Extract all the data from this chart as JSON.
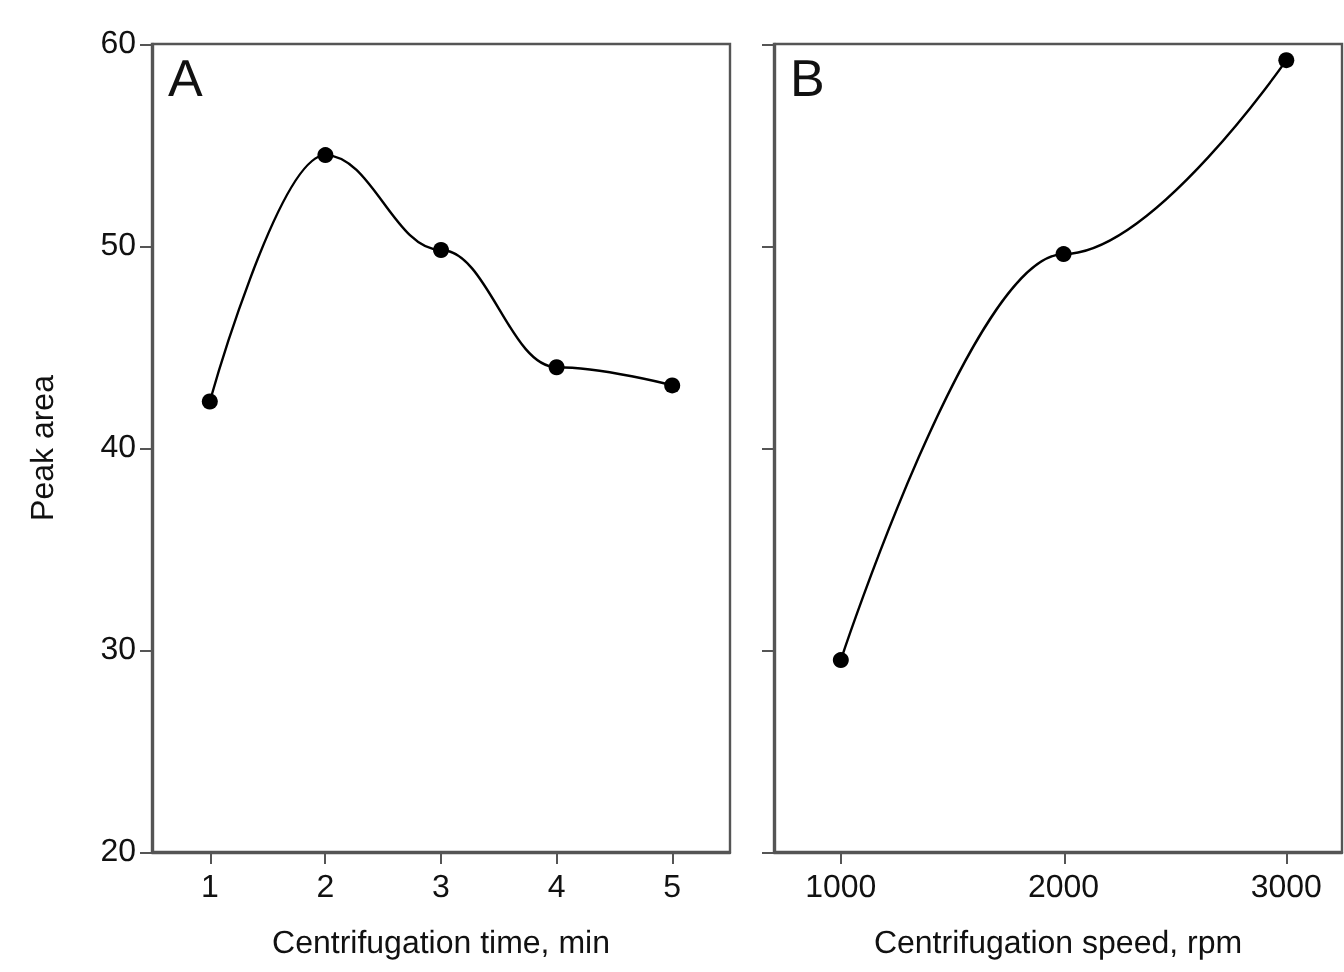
{
  "chart_data": [
    {
      "type": "line",
      "annotations": [
        "A"
      ],
      "xlabel": "Centrifugation time, min",
      "ylabel": "Peak area",
      "x": [
        1,
        2,
        3,
        4,
        5
      ],
      "series": [
        {
          "color": "#000000",
          "values": [
            42.3,
            54.5,
            49.8,
            44.0,
            43.1
          ]
        }
      ],
      "xlim": [
        0.5,
        5.5
      ],
      "xticks": [
        1,
        2,
        3,
        4,
        5
      ],
      "ylim": [
        20,
        60
      ],
      "yticks": [
        20,
        30,
        40,
        50,
        60
      ],
      "grid": false,
      "marker": "circle",
      "line_style": "solid"
    },
    {
      "type": "line",
      "annotations": [
        "B"
      ],
      "xlabel": "Centrifugation speed, rpm",
      "x": [
        1000,
        2000,
        3000
      ],
      "series": [
        {
          "color": "#000000",
          "values": [
            29.5,
            49.6,
            59.2
          ]
        }
      ],
      "xlim": [
        700,
        3250
      ],
      "xticks": [
        1000,
        2000,
        3000
      ],
      "ylim": [
        20,
        60
      ],
      "yticks": [
        20,
        30,
        40,
        50,
        60
      ],
      "tick_labels": "x",
      "grid": false,
      "marker": "circle",
      "line_style": "solid"
    }
  ]
}
